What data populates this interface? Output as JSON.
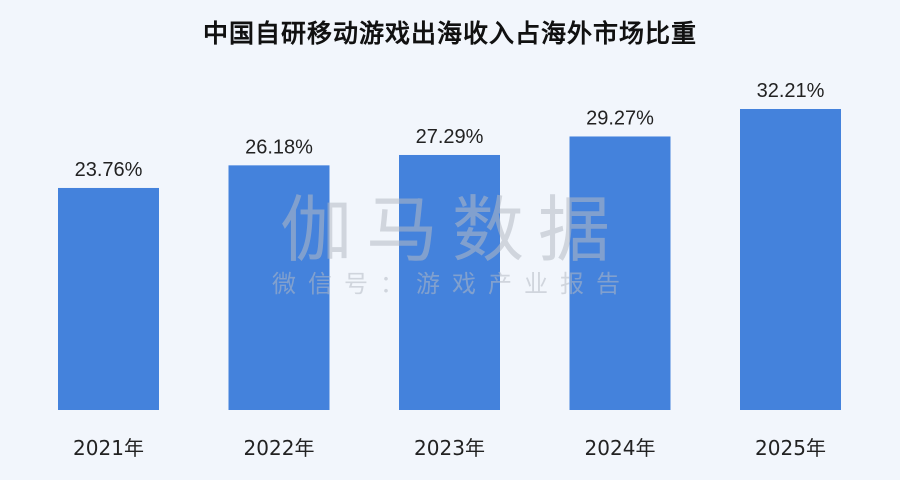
{
  "chart_data": {
    "type": "bar",
    "title": "中国自研移动游戏出海收入占海外市场比重",
    "categories": [
      "2021年",
      "2022年",
      "2023年",
      "2024年",
      "2025年"
    ],
    "values": [
      23.76,
      26.18,
      27.29,
      29.27,
      32.21
    ],
    "data_labels": [
      "23.76%",
      "26.18%",
      "27.29%",
      "29.27%",
      "32.21%"
    ],
    "unit": "%",
    "ylim": [
      0,
      32.21
    ],
    "grid": false,
    "bar_color": "#4482dc"
  },
  "watermark": {
    "main": "伽马数据",
    "sub": "微信号：游戏产业报告"
  }
}
